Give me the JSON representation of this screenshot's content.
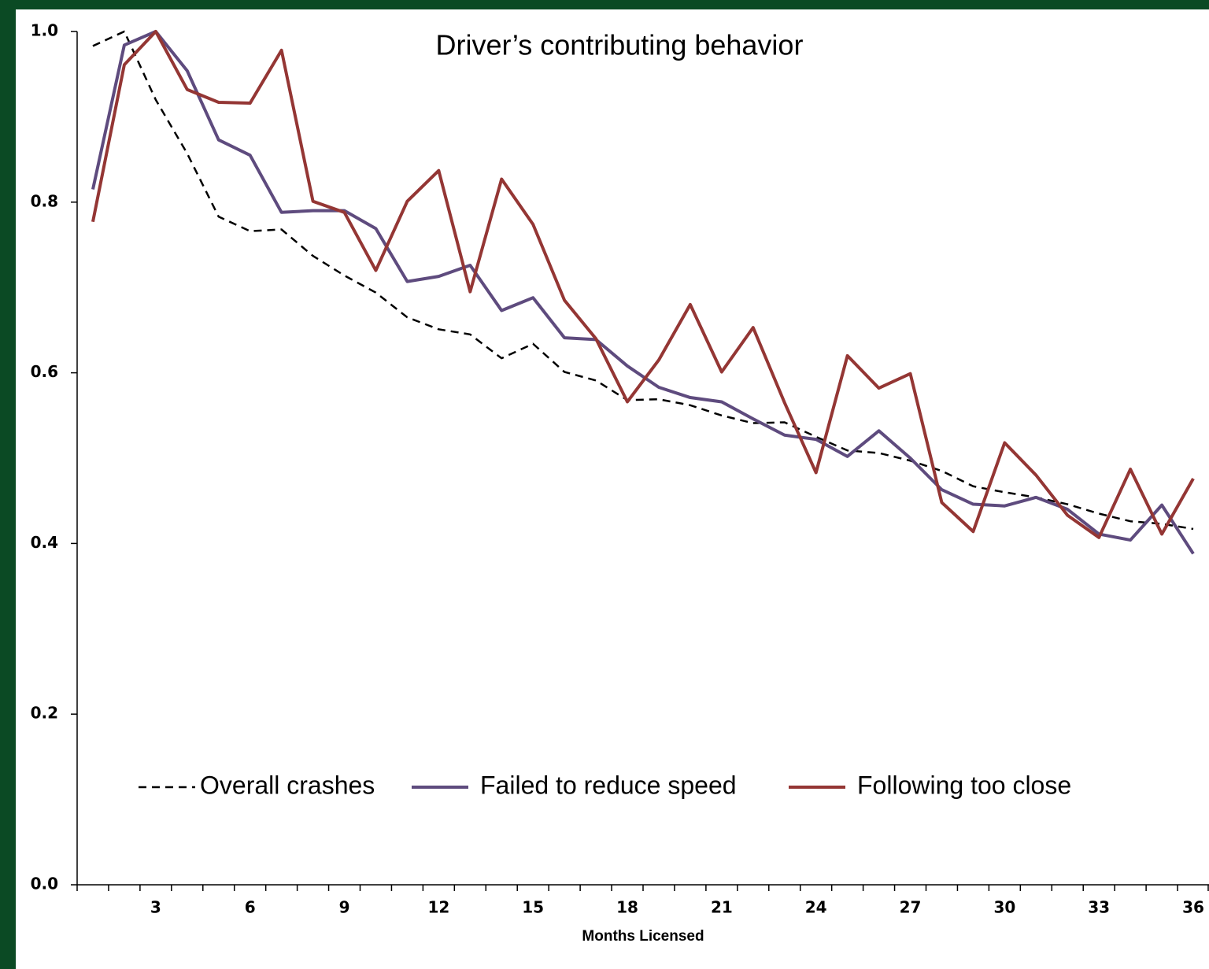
{
  "chart_data": {
    "type": "line",
    "title": "Driver’s contributing behavior",
    "x_label": "Months Licensed",
    "categories": [
      null,
      null,
      3,
      null,
      null,
      6,
      null,
      null,
      9,
      null,
      null,
      12,
      null,
      null,
      15,
      null,
      null,
      18,
      null,
      null,
      21,
      null,
      null,
      24,
      null,
      null,
      27,
      null,
      null,
      30,
      null,
      null,
      33,
      null,
      null,
      36
    ],
    "ylim": [
      0,
      1
    ],
    "yticks": [
      {
        "value": 0,
        "label": "0.0"
      },
      0.2,
      0.4,
      0.6,
      0.8,
      {
        "value": 1,
        "label": "1.0"
      }
    ],
    "grid": false,
    "legend": "lower center",
    "series": [
      {
        "name": "Overall crashes",
        "color": "#000000",
        "dashed": true,
        "values": [
          0.983,
          1.0,
          0.92,
          0.857,
          0.783,
          0.766,
          0.768,
          0.737,
          0.714,
          0.694,
          0.665,
          0.651,
          0.645,
          0.617,
          0.634,
          0.601,
          0.591,
          0.568,
          0.569,
          0.562,
          0.55,
          0.541,
          0.542,
          0.525,
          0.509,
          0.506,
          0.497,
          0.485,
          0.467,
          0.46,
          0.454,
          0.446,
          0.435,
          0.426,
          0.423,
          0.417
        ]
      },
      {
        "name": "Failed to reduce speed",
        "color": "#5e4b7e",
        "dashed": false,
        "values": [
          0.815,
          0.984,
          1.0,
          0.954,
          0.873,
          0.855,
          0.788,
          0.79,
          0.79,
          0.769,
          0.707,
          0.713,
          0.726,
          0.673,
          0.688,
          0.641,
          0.639,
          0.608,
          0.583,
          0.571,
          0.566,
          0.546,
          0.527,
          0.522,
          0.502,
          0.532,
          0.5,
          0.463,
          0.446,
          0.444,
          0.454,
          0.44,
          0.411,
          0.404,
          0.445,
          0.388
        ]
      },
      {
        "name": "Following too close",
        "color": "#943634",
        "dashed": false,
        "values": [
          0.777,
          0.961,
          1.0,
          0.932,
          0.917,
          0.916,
          0.978,
          0.801,
          0.788,
          0.72,
          0.801,
          0.837,
          0.695,
          0.827,
          0.774,
          0.685,
          0.64,
          0.566,
          0.615,
          0.68,
          0.601,
          0.653,
          0.565,
          0.483,
          0.62,
          0.582,
          0.599,
          0.448,
          0.414,
          0.518,
          0.48,
          0.433,
          0.407,
          0.487,
          0.411,
          0.476
        ]
      }
    ]
  }
}
